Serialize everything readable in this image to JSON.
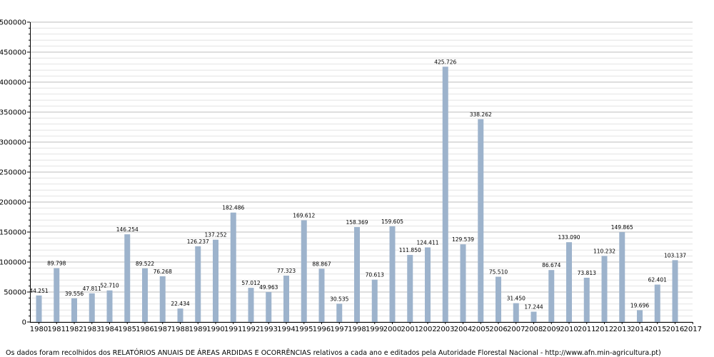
{
  "chart_data": {
    "type": "bar",
    "categories": [
      "1980",
      "1981",
      "1982",
      "1983",
      "1984",
      "1985",
      "1986",
      "1987",
      "1988",
      "1989",
      "1990",
      "1991",
      "1992",
      "1993",
      "1994",
      "1995",
      "1996",
      "1997",
      "1998",
      "1999",
      "2000",
      "2001",
      "2002",
      "2003",
      "2004",
      "2005",
      "2006",
      "2007",
      "2008",
      "2009",
      "2010",
      "2011",
      "2012",
      "2013",
      "2014",
      "2015",
      "2016",
      "2017"
    ],
    "values": [
      44251,
      89798,
      39556,
      47811,
      52710,
      146254,
      89522,
      76268,
      22434,
      126237,
      137252,
      182486,
      57012,
      49963,
      77323,
      169612,
      88867,
      30535,
      158369,
      70613,
      159605,
      111850,
      124411,
      425726,
      129539,
      338262,
      75510,
      31450,
      17244,
      86674,
      133090,
      73813,
      110232,
      149865,
      19696,
      62401,
      103137,
      null
    ],
    "data_labels": [
      "44.251",
      "89.798",
      "39.556",
      "47.811",
      "52.710",
      "146.254",
      "89.522",
      "76.268",
      "22.434",
      "126.237",
      "137.252",
      "182.486",
      "57.012",
      "49.963",
      "77.323",
      "169.612",
      "88.867",
      "30.535",
      "158.369",
      "70.613",
      "159.605",
      "111.850",
      "124.411",
      "425.726",
      "129.539",
      "338.262",
      "75.510",
      "31.450",
      "17.244",
      "86.674",
      "133.090",
      "73.813",
      "110.232",
      "149.865",
      "19.696",
      "62.401",
      "103.137",
      ""
    ],
    "ylim": [
      0,
      500000
    ],
    "yticks": [
      0,
      50000,
      100000,
      150000,
      200000,
      250000,
      300000,
      350000,
      400000,
      450000,
      500000
    ],
    "ytick_labels": [
      "0",
      "50000",
      "100000",
      "150000",
      "200000",
      "250000",
      "300000",
      "350000",
      "400000",
      "450000",
      "500000"
    ],
    "grid": true,
    "bar_color": "#9db3cc",
    "title": "",
    "xlabel": "",
    "ylabel": ""
  },
  "note": "Os dados foram recolhidos dos RELATÓRIOS ANUAIS DE ÁREAS ARDIDAS E OCORRÊNCIAS relativos a cada ano e editados pela Autoridade Florestal Nacional - http://www.afn.min-agricultura.pt)"
}
